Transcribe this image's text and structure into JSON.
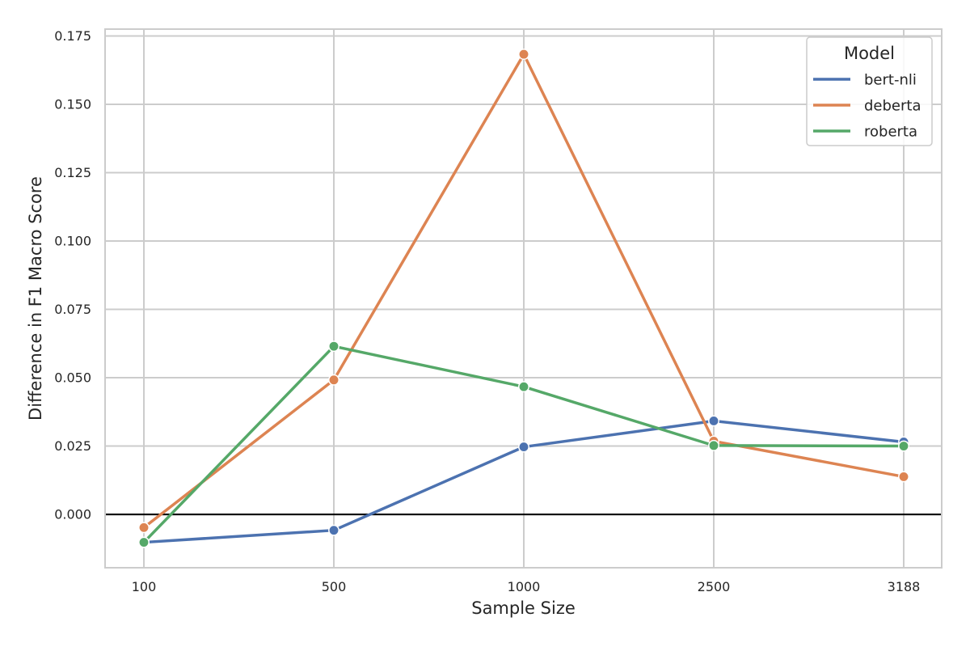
{
  "chart_data": {
    "type": "line",
    "categories": [
      "100",
      "500",
      "1000",
      "2500",
      "3188"
    ],
    "xlabel": "Sample Size",
    "ylabel": "Difference in F1 Macro Score",
    "ylim": [
      -0.0195,
      0.1775
    ],
    "yticks": [
      "0.000",
      "0.025",
      "0.050",
      "0.075",
      "0.100",
      "0.125",
      "0.150",
      "0.175"
    ],
    "ytick_values": [
      0,
      0.025,
      0.05,
      0.075,
      0.1,
      0.125,
      0.15,
      0.175
    ],
    "grid": true,
    "reference_line_y": 0,
    "legend": {
      "title": "Model",
      "placement": "top-right"
    },
    "series": [
      {
        "name": "bert-nli",
        "color": "#4c72b0",
        "values": [
          -0.0102,
          -0.0058,
          0.0247,
          0.0342,
          0.0265
        ]
      },
      {
        "name": "deberta",
        "color": "#dd8452",
        "values": [
          -0.0048,
          0.0492,
          0.1683,
          0.0268,
          0.0138
        ]
      },
      {
        "name": "roberta",
        "color": "#55a868",
        "values": [
          -0.0102,
          0.0615,
          0.0467,
          0.0252,
          0.025
        ]
      }
    ]
  }
}
